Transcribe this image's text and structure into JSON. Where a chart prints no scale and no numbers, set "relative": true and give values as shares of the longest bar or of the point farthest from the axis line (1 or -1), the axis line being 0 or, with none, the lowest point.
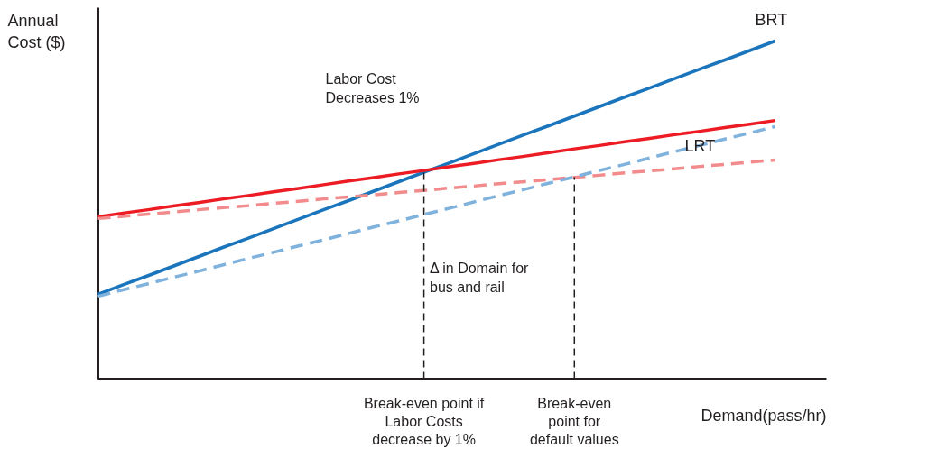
{
  "chart_data": {
    "type": "line",
    "relative": true,
    "xlabel": "Demand(pass/hr)",
    "ylabel": "Annual Cost ($)",
    "categories": [
      null,
      null,
      null,
      null,
      null,
      null,
      null,
      null,
      null,
      null,
      null,
      null,
      null,
      "Break-even point if Labor Costs decrease by 1%",
      null,
      null,
      null,
      null,
      null,
      "Break-even point for default values",
      null,
      null,
      null,
      null,
      null,
      null,
      null,
      null
    ],
    "series": [
      {
        "name": "BRT",
        "color": "#1a75bc",
        "line_style": "solid",
        "values": [
          0.251,
          0.279,
          0.306,
          0.334,
          0.362,
          0.39,
          0.417,
          0.445,
          0.473,
          0.501,
          0.528,
          0.556,
          0.584,
          0.612,
          0.639,
          0.667,
          0.695,
          0.723,
          0.75,
          0.778,
          0.806,
          0.834,
          0.861,
          0.889,
          0.917,
          0.944,
          0.972,
          1.0
        ]
      },
      {
        "name": "LRT",
        "color": "#ed1c24",
        "line_style": "solid",
        "values": [
          0.48,
          0.491,
          0.501,
          0.512,
          0.522,
          0.533,
          0.543,
          0.554,
          0.564,
          0.575,
          0.586,
          0.596,
          0.607,
          0.617,
          0.628,
          0.638,
          0.649,
          0.659,
          0.67,
          0.681,
          0.691,
          0.702,
          0.712,
          0.723,
          0.733,
          0.744,
          0.754,
          0.765
        ]
      },
      {
        "color": "#f28b8b",
        "line_style": "dashed",
        "values": [
          0.475,
          0.481,
          0.488,
          0.494,
          0.501,
          0.507,
          0.513,
          0.52,
          0.526,
          0.533,
          0.539,
          0.545,
          0.552,
          0.558,
          0.565,
          0.571,
          0.578,
          0.584,
          0.59,
          0.597,
          0.603,
          0.61,
          0.616,
          0.622,
          0.629,
          0.635,
          0.642,
          0.648
        ]
      },
      {
        "color": "#7fb2dc",
        "line_style": "dashed",
        "values": [
          0.245,
          0.264,
          0.282,
          0.301,
          0.319,
          0.338,
          0.357,
          0.375,
          0.394,
          0.412,
          0.431,
          0.45,
          0.468,
          0.487,
          0.505,
          0.524,
          0.543,
          0.561,
          0.58,
          0.598,
          0.617,
          0.635,
          0.654,
          0.673,
          0.691,
          0.71,
          0.728,
          0.747
        ]
      }
    ],
    "annotations": [
      "Labor Cost Decreases 1%",
      "Δ in Domain for bus and rail"
    ]
  }
}
